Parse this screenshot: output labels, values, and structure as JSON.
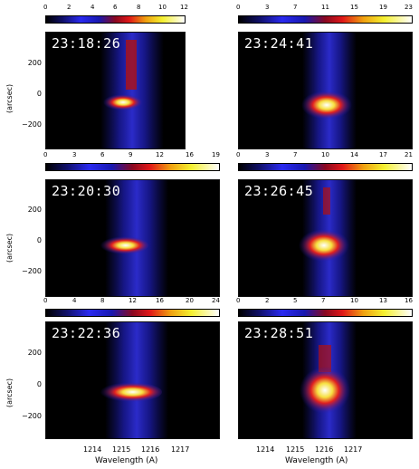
{
  "panels": [
    {
      "time": "23:18:26",
      "cbar": [
        "0",
        "2",
        "4",
        "6",
        "8",
        "10",
        "12"
      ]
    },
    {
      "time": "23:24:41",
      "cbar": [
        "0",
        "3",
        "7",
        "11",
        "15",
        "19",
        "23"
      ]
    },
    {
      "time": "23:20:30",
      "cbar": [
        "0",
        "3",
        "6",
        "9",
        "12",
        "16",
        "19"
      ]
    },
    {
      "time": "23:26:45",
      "cbar": [
        "0",
        "3",
        "7",
        "10",
        "14",
        "17",
        "21"
      ]
    },
    {
      "time": "23:22:36",
      "cbar": [
        "0",
        "4",
        "8",
        "12",
        "16",
        "20",
        "24"
      ]
    },
    {
      "time": "23:28:51",
      "cbar": [
        "0",
        "2",
        "5",
        "7",
        "10",
        "13",
        "16"
      ]
    }
  ],
  "y_axis": {
    "label": "(arcsec)",
    "ticks": [
      "200",
      "0",
      "−200"
    ]
  },
  "x_axis": {
    "label": "Wavelength (A)",
    "ticks": [
      "1214",
      "1215",
      "1216",
      "1217"
    ]
  }
}
